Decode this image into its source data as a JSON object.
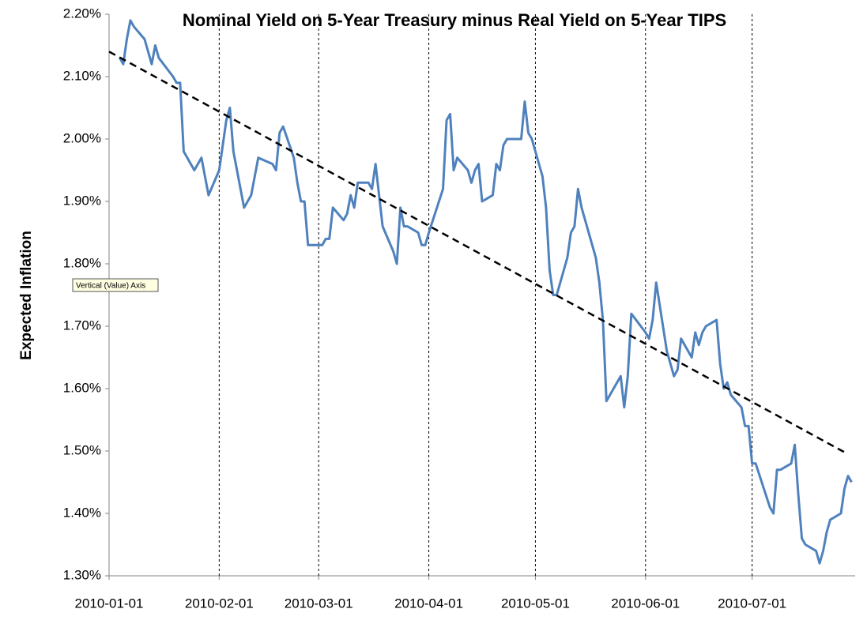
{
  "chart_data": {
    "type": "line",
    "title": "Nominal Yield on 5-Year Treasury minus Real Yield on 5-Year TIPS",
    "y_label": "Expected Inflation",
    "tooltip": "Vertical (Value) Axis",
    "x": [
      "2010-01-04",
      "2010-01-05",
      "2010-01-06",
      "2010-01-07",
      "2010-01-08",
      "2010-01-11",
      "2010-01-12",
      "2010-01-13",
      "2010-01-14",
      "2010-01-15",
      "2010-01-19",
      "2010-01-20",
      "2010-01-21",
      "2010-01-22",
      "2010-01-25",
      "2010-01-26",
      "2010-01-27",
      "2010-01-28",
      "2010-01-29",
      "2010-02-01",
      "2010-02-02",
      "2010-02-03",
      "2010-02-04",
      "2010-02-05",
      "2010-02-08",
      "2010-02-09",
      "2010-02-10",
      "2010-02-11",
      "2010-02-12",
      "2010-02-16",
      "2010-02-17",
      "2010-02-18",
      "2010-02-19",
      "2010-02-22",
      "2010-02-23",
      "2010-02-24",
      "2010-02-25",
      "2010-02-26",
      "2010-03-01",
      "2010-03-02",
      "2010-03-03",
      "2010-03-04",
      "2010-03-05",
      "2010-03-08",
      "2010-03-09",
      "2010-03-10",
      "2010-03-11",
      "2010-03-12",
      "2010-03-15",
      "2010-03-16",
      "2010-03-17",
      "2010-03-18",
      "2010-03-19",
      "2010-03-22",
      "2010-03-23",
      "2010-03-24",
      "2010-03-25",
      "2010-03-26",
      "2010-03-29",
      "2010-03-30",
      "2010-03-31",
      "2010-04-01",
      "2010-04-05",
      "2010-04-06",
      "2010-04-07",
      "2010-04-08",
      "2010-04-09",
      "2010-04-12",
      "2010-04-13",
      "2010-04-14",
      "2010-04-15",
      "2010-04-16",
      "2010-04-19",
      "2010-04-20",
      "2010-04-21",
      "2010-04-22",
      "2010-04-23",
      "2010-04-26",
      "2010-04-27",
      "2010-04-28",
      "2010-04-29",
      "2010-04-30",
      "2010-05-03",
      "2010-05-04",
      "2010-05-05",
      "2010-05-06",
      "2010-05-07",
      "2010-05-10",
      "2010-05-11",
      "2010-05-12",
      "2010-05-13",
      "2010-05-14",
      "2010-05-17",
      "2010-05-18",
      "2010-05-19",
      "2010-05-20",
      "2010-05-21",
      "2010-05-24",
      "2010-05-25",
      "2010-05-26",
      "2010-05-27",
      "2010-05-28",
      "2010-06-01",
      "2010-06-02",
      "2010-06-03",
      "2010-06-04",
      "2010-06-07",
      "2010-06-08",
      "2010-06-09",
      "2010-06-10",
      "2010-06-11",
      "2010-06-14",
      "2010-06-15",
      "2010-06-16",
      "2010-06-17",
      "2010-06-18",
      "2010-06-21",
      "2010-06-22",
      "2010-06-23",
      "2010-06-24",
      "2010-06-25",
      "2010-06-28",
      "2010-06-29",
      "2010-06-30",
      "2010-07-01",
      "2010-07-02",
      "2010-07-06",
      "2010-07-07",
      "2010-07-08",
      "2010-07-09",
      "2010-07-12",
      "2010-07-13",
      "2010-07-14",
      "2010-07-15",
      "2010-07-16",
      "2010-07-19",
      "2010-07-20",
      "2010-07-21",
      "2010-07-22",
      "2010-07-23",
      "2010-07-26",
      "2010-07-27",
      "2010-07-28",
      "2010-07-29"
    ],
    "series": [
      {
        "color": "#4f81bd",
        "values": [
          2.13,
          2.12,
          2.16,
          2.19,
          2.18,
          2.16,
          2.14,
          2.12,
          2.15,
          2.13,
          2.1,
          2.09,
          2.09,
          1.98,
          1.95,
          1.96,
          1.97,
          1.94,
          1.91,
          1.95,
          1.99,
          2.03,
          2.05,
          1.98,
          1.89,
          1.9,
          1.91,
          1.94,
          1.97,
          1.96,
          1.95,
          2.01,
          2.02,
          1.97,
          1.93,
          1.9,
          1.9,
          1.83,
          1.83,
          1.83,
          1.84,
          1.84,
          1.89,
          1.87,
          1.88,
          1.91,
          1.89,
          1.93,
          1.93,
          1.92,
          1.96,
          1.91,
          1.86,
          1.82,
          1.8,
          1.89,
          1.86,
          1.86,
          1.85,
          1.83,
          1.83,
          1.85,
          1.92,
          2.03,
          2.04,
          1.95,
          1.97,
          1.95,
          1.93,
          1.95,
          1.96,
          1.9,
          1.91,
          1.96,
          1.95,
          1.99,
          2.0,
          2.0,
          2.0,
          2.06,
          2.01,
          2.0,
          1.94,
          1.89,
          1.79,
          1.75,
          1.75,
          1.81,
          1.85,
          1.86,
          1.92,
          1.89,
          1.83,
          1.81,
          1.77,
          1.71,
          1.58,
          1.61,
          1.62,
          1.57,
          1.62,
          1.72,
          1.69,
          1.68,
          1.71,
          1.77,
          1.66,
          1.64,
          1.62,
          1.63,
          1.68,
          1.65,
          1.69,
          1.67,
          1.69,
          1.7,
          1.71,
          1.64,
          1.6,
          1.61,
          1.59,
          1.57,
          1.54,
          1.54,
          1.48,
          1.48,
          1.41,
          1.4,
          1.47,
          1.47,
          1.48,
          1.51,
          1.43,
          1.36,
          1.35,
          1.34,
          1.32,
          1.34,
          1.37,
          1.39,
          1.4,
          1.44,
          1.46,
          1.45
        ]
      }
    ],
    "trendline": {
      "x": [
        "2010-01-01",
        "2010-07-28"
      ],
      "values": [
        2.14,
        1.495
      ],
      "color": "#000000"
    },
    "xlim": [
      "2010-01-01",
      "2010-07-30"
    ],
    "xticks": [
      "2010-01-01",
      "2010-02-01",
      "2010-03-01",
      "2010-04-01",
      "2010-05-01",
      "2010-06-01",
      "2010-07-01"
    ],
    "ylim": [
      1.3,
      2.2
    ],
    "yticks": [
      {
        "value": 1.3,
        "label": "1.30%"
      },
      {
        "value": 1.4,
        "label": "1.40%"
      },
      {
        "value": 1.5,
        "label": "1.50%"
      },
      {
        "value": 1.6,
        "label": "1.60%"
      },
      {
        "value": 1.7,
        "label": "1.70%"
      },
      {
        "value": 1.8,
        "label": "1.80%"
      },
      {
        "value": 1.9,
        "label": "1.90%"
      },
      {
        "value": 2.0,
        "label": "2.00%"
      },
      {
        "value": 2.1,
        "label": "2.10%"
      },
      {
        "value": 2.2,
        "label": "2.20%"
      }
    ],
    "grid": "x"
  }
}
